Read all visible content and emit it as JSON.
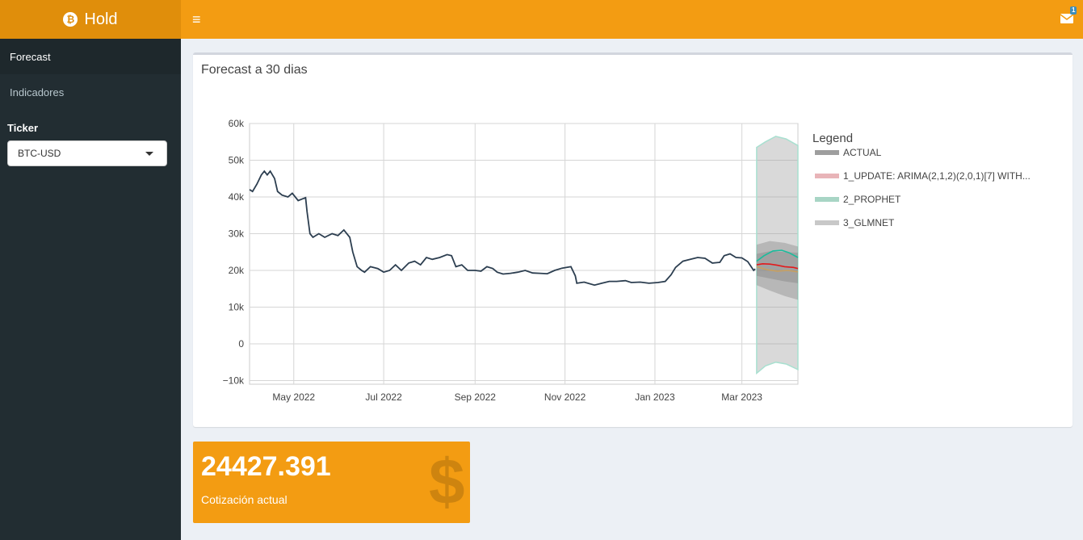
{
  "app": {
    "title": "Hold",
    "logo_icon": "bitcoin-icon"
  },
  "header": {
    "menu_icon": "bars-icon",
    "notifications_icon": "envelope-icon",
    "notifications_count": "1"
  },
  "sidebar": {
    "items": [
      {
        "label": "Forecast",
        "active": true
      },
      {
        "label": "Indicadores",
        "active": false
      }
    ],
    "ticker_label": "Ticker",
    "ticker_value": "BTC-USD"
  },
  "forecast_box": {
    "title": "Forecast a 30 dias"
  },
  "value_box": {
    "value": "24427.391",
    "subtitle": "Cotización actual",
    "icon": "dollar-icon"
  },
  "colors": {
    "accent": "#f39c12",
    "sidebar": "#222d32",
    "actual": "#2c3e50",
    "arima": "#e31a1c",
    "prophet": "#1abc9c",
    "glmnet": "#c8a060"
  },
  "chart_data": {
    "type": "line",
    "title": "",
    "xlabel": "",
    "ylabel": "",
    "ylim": [
      -11000,
      60000
    ],
    "xlim": [
      "2022-04-01",
      "2023-04-08"
    ],
    "x_ticks": [
      {
        "date": "2022-05-01",
        "label": "May 2022"
      },
      {
        "date": "2022-07-01",
        "label": "Jul 2022"
      },
      {
        "date": "2022-09-01",
        "label": "Sep 2022"
      },
      {
        "date": "2022-11-01",
        "label": "Nov 2022"
      },
      {
        "date": "2023-01-01",
        "label": "Jan 2023"
      },
      {
        "date": "2023-03-01",
        "label": "Mar 2023"
      }
    ],
    "y_ticks": [
      {
        "value": 60000,
        "label": "60k"
      },
      {
        "value": 50000,
        "label": "50k"
      },
      {
        "value": 40000,
        "label": "40k"
      },
      {
        "value": 30000,
        "label": "30k"
      },
      {
        "value": 20000,
        "label": "20k"
      },
      {
        "value": 10000,
        "label": "10k"
      },
      {
        "value": 0,
        "label": "0"
      },
      {
        "value": -10000,
        "label": "−10k"
      }
    ],
    "grid": true,
    "legend_title": "Legend",
    "legend_position": "right",
    "series": [
      {
        "name": "ACTUAL",
        "kind": "actual",
        "color": "#2c3e50",
        "swatch": "#9e9e9e",
        "points": [
          [
            "2022-04-01",
            42000
          ],
          [
            "2022-04-03",
            41500
          ],
          [
            "2022-04-06",
            43500
          ],
          [
            "2022-04-09",
            46000
          ],
          [
            "2022-04-11",
            47000
          ],
          [
            "2022-04-13",
            46000
          ],
          [
            "2022-04-15",
            47000
          ],
          [
            "2022-04-18",
            45000
          ],
          [
            "2022-04-20",
            41500
          ],
          [
            "2022-04-23",
            40500
          ],
          [
            "2022-04-27",
            40000
          ],
          [
            "2022-04-30",
            41000
          ],
          [
            "2022-05-04",
            39000
          ],
          [
            "2022-05-07",
            39500
          ],
          [
            "2022-05-09",
            39800
          ],
          [
            "2022-05-10",
            36000
          ],
          [
            "2022-05-12",
            30000
          ],
          [
            "2022-05-14",
            29000
          ],
          [
            "2022-05-18",
            30000
          ],
          [
            "2022-05-22",
            29000
          ],
          [
            "2022-05-27",
            30000
          ],
          [
            "2022-05-31",
            29500
          ],
          [
            "2022-06-04",
            31000
          ],
          [
            "2022-06-08",
            29000
          ],
          [
            "2022-06-10",
            25000
          ],
          [
            "2022-06-13",
            21000
          ],
          [
            "2022-06-16",
            20000
          ],
          [
            "2022-06-18",
            19500
          ],
          [
            "2022-06-22",
            21000
          ],
          [
            "2022-06-27",
            20500
          ],
          [
            "2022-07-01",
            19500
          ],
          [
            "2022-07-05",
            20000
          ],
          [
            "2022-07-09",
            21500
          ],
          [
            "2022-07-13",
            20000
          ],
          [
            "2022-07-18",
            22000
          ],
          [
            "2022-07-22",
            22500
          ],
          [
            "2022-07-26",
            21500
          ],
          [
            "2022-07-30",
            23500
          ],
          [
            "2022-08-03",
            23000
          ],
          [
            "2022-08-08",
            23500
          ],
          [
            "2022-08-13",
            24300
          ],
          [
            "2022-08-16",
            24000
          ],
          [
            "2022-08-19",
            21000
          ],
          [
            "2022-08-23",
            21500
          ],
          [
            "2022-08-27",
            20000
          ],
          [
            "2022-09-01",
            20000
          ],
          [
            "2022-09-05",
            19800
          ],
          [
            "2022-09-09",
            21000
          ],
          [
            "2022-09-13",
            20500
          ],
          [
            "2022-09-16",
            19500
          ],
          [
            "2022-09-20",
            19000
          ],
          [
            "2022-09-25",
            19200
          ],
          [
            "2022-09-30",
            19500
          ],
          [
            "2022-10-05",
            20000
          ],
          [
            "2022-10-10",
            19300
          ],
          [
            "2022-10-15",
            19200
          ],
          [
            "2022-10-20",
            19100
          ],
          [
            "2022-10-25",
            20000
          ],
          [
            "2022-10-30",
            20600
          ],
          [
            "2022-11-05",
            21000
          ],
          [
            "2022-11-08",
            18500
          ],
          [
            "2022-11-09",
            16500
          ],
          [
            "2022-11-14",
            16800
          ],
          [
            "2022-11-21",
            16000
          ],
          [
            "2022-11-26",
            16500
          ],
          [
            "2022-12-01",
            17000
          ],
          [
            "2022-12-06",
            17000
          ],
          [
            "2022-12-12",
            17200
          ],
          [
            "2022-12-16",
            16700
          ],
          [
            "2022-12-22",
            16800
          ],
          [
            "2022-12-28",
            16500
          ],
          [
            "2023-01-03",
            16700
          ],
          [
            "2023-01-08",
            17000
          ],
          [
            "2023-01-12",
            18800
          ],
          [
            "2023-01-15",
            20800
          ],
          [
            "2023-01-20",
            22500
          ],
          [
            "2023-01-25",
            23000
          ],
          [
            "2023-01-30",
            23500
          ],
          [
            "2023-02-04",
            23300
          ],
          [
            "2023-02-09",
            22000
          ],
          [
            "2023-02-14",
            22200
          ],
          [
            "2023-02-17",
            24000
          ],
          [
            "2023-02-21",
            24500
          ],
          [
            "2023-02-25",
            23500
          ],
          [
            "2023-03-01",
            23400
          ],
          [
            "2023-03-05",
            22400
          ],
          [
            "2023-03-09",
            20000
          ],
          [
            "2023-03-10",
            20400
          ]
        ]
      },
      {
        "name": "1_UPDATE: ARIMA(2,1,2)(2,0,1)[7] WITH...",
        "kind": "forecast",
        "color": "#e31a1c",
        "swatch": "#e8b4b8",
        "points": [
          [
            "2023-03-11",
            21500
          ],
          [
            "2023-03-15",
            21800
          ],
          [
            "2023-03-20",
            21700
          ],
          [
            "2023-03-25",
            21400
          ],
          [
            "2023-03-30",
            21000
          ],
          [
            "2023-04-05",
            20800
          ],
          [
            "2023-04-08",
            20500
          ]
        ],
        "lower": [
          [
            "2023-03-11",
            18500
          ],
          [
            "2023-03-20",
            17800
          ],
          [
            "2023-03-30",
            17000
          ],
          [
            "2023-04-08",
            16500
          ]
        ],
        "upper": [
          [
            "2023-03-11",
            24500
          ],
          [
            "2023-03-20",
            25200
          ],
          [
            "2023-03-30",
            25000
          ],
          [
            "2023-04-08",
            24800
          ]
        ]
      },
      {
        "name": "2_PROPHET",
        "kind": "forecast",
        "color": "#1abc9c",
        "swatch": "#a8d5c5",
        "points": [
          [
            "2023-03-11",
            22500
          ],
          [
            "2023-03-16",
            24000
          ],
          [
            "2023-03-22",
            25300
          ],
          [
            "2023-03-28",
            25500
          ],
          [
            "2023-04-02",
            24800
          ],
          [
            "2023-04-08",
            23500
          ]
        ],
        "lower": [
          [
            "2023-03-11",
            -8000
          ],
          [
            "2023-03-17",
            -6000
          ],
          [
            "2023-03-24",
            -5000
          ],
          [
            "2023-03-31",
            -5500
          ],
          [
            "2023-04-08",
            -7000
          ]
        ],
        "upper": [
          [
            "2023-03-11",
            53500
          ],
          [
            "2023-03-17",
            55000
          ],
          [
            "2023-03-24",
            56500
          ],
          [
            "2023-03-31",
            55800
          ],
          [
            "2023-04-08",
            54000
          ]
        ]
      },
      {
        "name": "3_GLMNET",
        "kind": "forecast",
        "color": "#c8a060",
        "swatch": "#c8c8c8",
        "points": [
          [
            "2023-03-11",
            21000
          ],
          [
            "2023-03-18",
            20200
          ],
          [
            "2023-03-25",
            19800
          ],
          [
            "2023-04-01",
            20000
          ],
          [
            "2023-04-08",
            19600
          ]
        ],
        "lower": [
          [
            "2023-03-11",
            16000
          ],
          [
            "2023-03-20",
            14500
          ],
          [
            "2023-03-30",
            13000
          ],
          [
            "2023-04-08",
            12000
          ]
        ],
        "upper": [
          [
            "2023-03-11",
            27000
          ],
          [
            "2023-03-20",
            28000
          ],
          [
            "2023-03-30",
            27500
          ],
          [
            "2023-04-08",
            26500
          ]
        ]
      }
    ]
  }
}
